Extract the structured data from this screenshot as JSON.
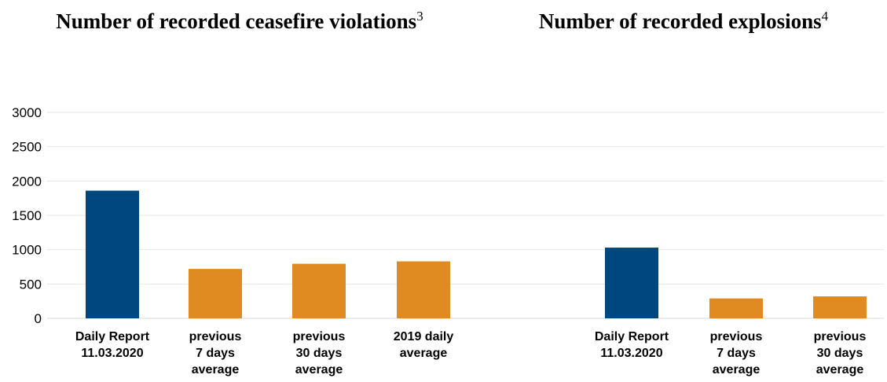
{
  "titles": {
    "left": {
      "text": "Number of recorded ceasefire violations",
      "sup": "3"
    },
    "right": {
      "text": "Number of recorded explosions",
      "sup": "4"
    }
  },
  "colors": {
    "daily": "#00467f",
    "average": "#e08a22",
    "grid": "#e6e6e6"
  },
  "chart_data": [
    {
      "type": "bar",
      "title": "Number of recorded ceasefire violations",
      "categories": [
        [
          "Daily Report",
          "11.03.2020"
        ],
        [
          "previous",
          "7 days",
          "average"
        ],
        [
          "previous",
          "30 days",
          "average"
        ],
        [
          "2019 daily",
          "average"
        ]
      ],
      "values": [
        1860,
        720,
        795,
        830
      ],
      "bar_color_keys": [
        "daily",
        "average",
        "average",
        "average"
      ],
      "ylim": [
        0,
        3000
      ],
      "yticks": [
        0,
        500,
        1000,
        1500,
        2000,
        2500,
        3000
      ],
      "grid": true
    },
    {
      "type": "bar",
      "title": "Number of recorded explosions",
      "categories": [
        [
          "Daily Report",
          "11.03.2020"
        ],
        [
          "previous",
          "7 days",
          "average"
        ],
        [
          "previous",
          "30 days",
          "average"
        ]
      ],
      "values": [
        1030,
        290,
        320
      ],
      "bar_color_keys": [
        "daily",
        "average",
        "average"
      ],
      "ylim": [
        0,
        3000
      ],
      "grid": true
    }
  ]
}
